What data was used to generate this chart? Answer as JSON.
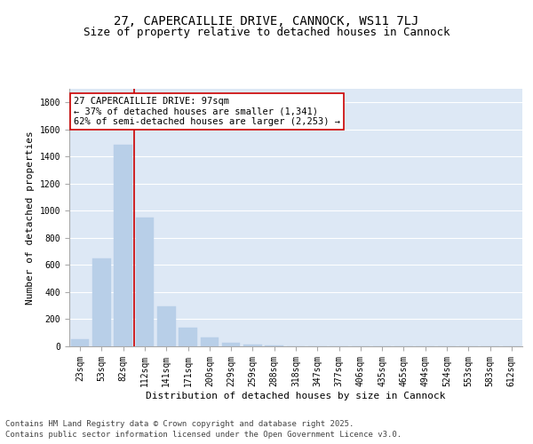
{
  "title": "27, CAPERCAILLIE DRIVE, CANNOCK, WS11 7LJ",
  "subtitle": "Size of property relative to detached houses in Cannock",
  "xlabel": "Distribution of detached houses by size in Cannock",
  "ylabel": "Number of detached properties",
  "bar_color": "#b8cfe8",
  "bar_edge_color": "#b8cfe8",
  "background_color": "#dde8f5",
  "grid_color": "#ffffff",
  "fig_background": "#ffffff",
  "categories": [
    "23sqm",
    "53sqm",
    "82sqm",
    "112sqm",
    "141sqm",
    "171sqm",
    "200sqm",
    "229sqm",
    "259sqm",
    "288sqm",
    "318sqm",
    "347sqm",
    "377sqm",
    "406sqm",
    "435sqm",
    "465sqm",
    "494sqm",
    "524sqm",
    "553sqm",
    "583sqm",
    "612sqm"
  ],
  "values": [
    50,
    650,
    1490,
    950,
    295,
    135,
    65,
    25,
    12,
    5,
    3,
    2,
    1,
    1,
    0,
    0,
    0,
    0,
    0,
    0,
    0
  ],
  "ylim": [
    0,
    1900
  ],
  "yticks": [
    0,
    200,
    400,
    600,
    800,
    1000,
    1200,
    1400,
    1600,
    1800
  ],
  "vline_x_idx": 2,
  "vline_color": "#cc0000",
  "annotation_text": "27 CAPERCAILLIE DRIVE: 97sqm\n← 37% of detached houses are smaller (1,341)\n62% of semi-detached houses are larger (2,253) →",
  "annotation_box_facecolor": "#ffffff",
  "annotation_box_edgecolor": "#cc0000",
  "footer_line1": "Contains HM Land Registry data © Crown copyright and database right 2025.",
  "footer_line2": "Contains public sector information licensed under the Open Government Licence v3.0.",
  "title_fontsize": 10,
  "subtitle_fontsize": 9,
  "axis_label_fontsize": 8,
  "tick_fontsize": 7,
  "annotation_fontsize": 7.5,
  "footer_fontsize": 6.5
}
